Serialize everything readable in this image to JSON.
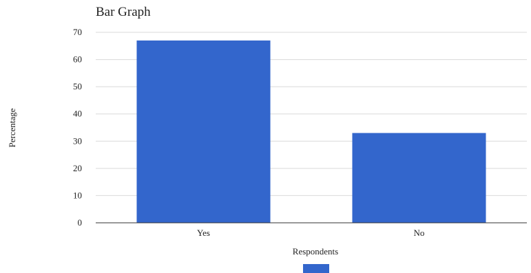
{
  "chart_data": {
    "type": "bar",
    "title": "Bar Graph",
    "xlabel": "Respondents",
    "ylabel": "Percentage",
    "categories": [
      "Yes",
      "No"
    ],
    "series": [
      {
        "values": [
          67,
          33
        ],
        "color": "#3366cc"
      }
    ],
    "ylim": [
      0,
      70
    ],
    "yticks": [
      0,
      10,
      20,
      30,
      40,
      50,
      60,
      70
    ],
    "grid": true,
    "legend": "bottom"
  }
}
